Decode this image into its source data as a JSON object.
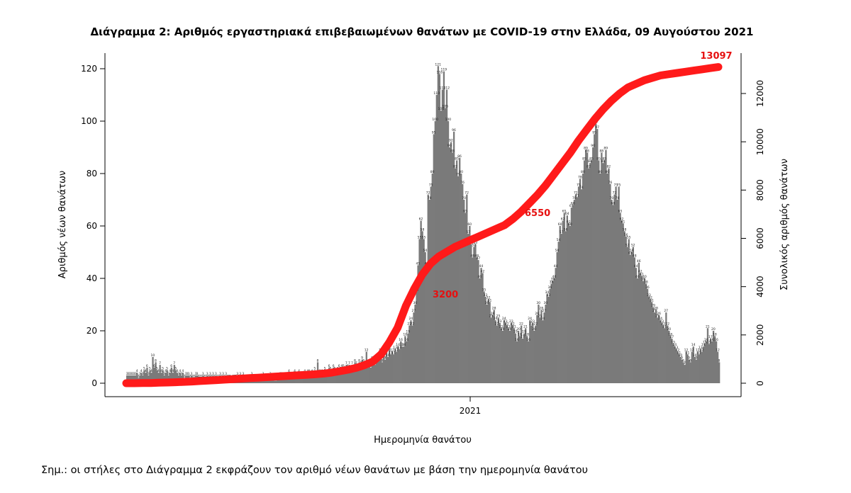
{
  "chart_data": {
    "type": "bar",
    "title": "Διάγραμμα 2: Αριθμός εργαστηριακά επιβεβαιωμένων θανάτων με COVID-19 στην Ελλάδα, 09 Αυγούστου 2021",
    "xlabel": "Ημερομηνία θανάτου",
    "ylabel_left": "Αριθμός νέων θανάτων",
    "ylabel_right": "Συνολικός αριθμός θανάτων",
    "x_ticks": [
      "2021"
    ],
    "y_left_ticks": [
      "0",
      "20",
      "40",
      "60",
      "80",
      "100",
      "120"
    ],
    "y_right_ticks": [
      "0",
      "2000",
      "4000",
      "6000",
      "8000",
      "10000",
      "12000"
    ],
    "ylim_left": [
      0,
      130
    ],
    "ylim_right": [
      0,
      13700
    ],
    "grid": false,
    "annotations": [
      "13097",
      "6550",
      "3200"
    ],
    "series": [
      {
        "type": "bar",
        "color": "#7a7a7a",
        "values": [
          3,
          3,
          3,
          3,
          3,
          3,
          3,
          4,
          2,
          3,
          4,
          3,
          5,
          4,
          6,
          3,
          5,
          4,
          10,
          6,
          8,
          5,
          4,
          7,
          4,
          5,
          3,
          4,
          5,
          3,
          4,
          6,
          4,
          7,
          5,
          4,
          3,
          4,
          3,
          4,
          2,
          3,
          3,
          3,
          2,
          3,
          2,
          2,
          3,
          3,
          2,
          2,
          2,
          3,
          2,
          2,
          3,
          2,
          3,
          2,
          3,
          2,
          3,
          2,
          2,
          3,
          2,
          3,
          2,
          3,
          2,
          2,
          2,
          1,
          2,
          2,
          2,
          3,
          2,
          3,
          2,
          3,
          2,
          2,
          2,
          1,
          2,
          3,
          2,
          2,
          2,
          2,
          1,
          2,
          2,
          3,
          2,
          2,
          2,
          2,
          3,
          2,
          2,
          1,
          1,
          2,
          2,
          3,
          3,
          3,
          3,
          2,
          2,
          4,
          2,
          3,
          3,
          4,
          3,
          3,
          4,
          3,
          3,
          3,
          4,
          3,
          4,
          4,
          3,
          4,
          3,
          5,
          3,
          8,
          4,
          4,
          4,
          3,
          5,
          4,
          3,
          6,
          5,
          4,
          6,
          5,
          4,
          5,
          6,
          5,
          6,
          6,
          5,
          7,
          6,
          7,
          5,
          7,
          6,
          8,
          7,
          6,
          8,
          7,
          9,
          8,
          6,
          12,
          7,
          8,
          6,
          9,
          8,
          7,
          8,
          9,
          10,
          12,
          8,
          11,
          9,
          12,
          10,
          16,
          11,
          12,
          11,
          13,
          12,
          14,
          13,
          16,
          14,
          14,
          18,
          16,
          19,
          22,
          24,
          22,
          27,
          30,
          35,
          45,
          55,
          62,
          58,
          55,
          50,
          45,
          72,
          70,
          75,
          80,
          95,
          100,
          110,
          121,
          118,
          104,
          112,
          119,
          105,
          112,
          100,
          90,
          92,
          88,
          96,
          82,
          85,
          79,
          86,
          80,
          76,
          70,
          65,
          72,
          57,
          60,
          53,
          48,
          52,
          53,
          48,
          47,
          40,
          44,
          42,
          35,
          33,
          30,
          32,
          31,
          25,
          26,
          28,
          24,
          22,
          25,
          23,
          21,
          20,
          24,
          23,
          22,
          21,
          20,
          23,
          22,
          21,
          19,
          16,
          20,
          18,
          22,
          17,
          19,
          21,
          18,
          16,
          24,
          22,
          23,
          20,
          22,
          26,
          30,
          25,
          28,
          24,
          27,
          30,
          34,
          33,
          36,
          38,
          39,
          40,
          44,
          50,
          54,
          60,
          57,
          62,
          65,
          58,
          64,
          61,
          60,
          67,
          68,
          70,
          72,
          71,
          75,
          78,
          74,
          80,
          85,
          89,
          88,
          82,
          84,
          85,
          90,
          95,
          99,
          97,
          85,
          80,
          88,
          84,
          85,
          89,
          80,
          82,
          76,
          70,
          68,
          72,
          75,
          70,
          75,
          65,
          62,
          61,
          58,
          56,
          52,
          55,
          49,
          50,
          52,
          48,
          44,
          40,
          46,
          42,
          41,
          39,
          40,
          38,
          36,
          33,
          32,
          31,
          29,
          27,
          28,
          25,
          26,
          24,
          23,
          22,
          21,
          27,
          22,
          20,
          18,
          17,
          15,
          14,
          13,
          12,
          11,
          10,
          9,
          8,
          7,
          12,
          11,
          9,
          8,
          12,
          14,
          10,
          9,
          12,
          11,
          13,
          12,
          14,
          15,
          16,
          21,
          15,
          17,
          16,
          20,
          18,
          16,
          12,
          8
        ]
      },
      {
        "type": "line",
        "color": "#ff1a1a",
        "values": [
          0,
          0,
          5,
          10,
          20,
          30,
          40,
          55,
          70,
          90,
          110,
          130,
          150,
          170,
          190,
          210,
          230,
          250,
          270,
          290,
          310,
          330,
          350,
          370,
          400,
          440,
          500,
          560,
          640,
          750,
          900,
          1200,
          1700,
          2300,
          3200,
          3900,
          4500,
          4950,
          5250,
          5450,
          5650,
          5800,
          5950,
          6100,
          6250,
          6400,
          6550,
          6800,
          7100,
          7450,
          7800,
          8200,
          8650,
          9100,
          9550,
          10050,
          10500,
          10950,
          11350,
          11700,
          12000,
          12250,
          12400,
          12550,
          12650,
          12750,
          12800,
          12850,
          12900,
          12950,
          13000,
          13050,
          13097
        ]
      }
    ]
  },
  "note": "Σημ.: οι στήλες στο Διάγραμμα 2 εκφράζουν τον αριθμό νέων θανάτων με βάση την ημερομηνία θανάτου"
}
